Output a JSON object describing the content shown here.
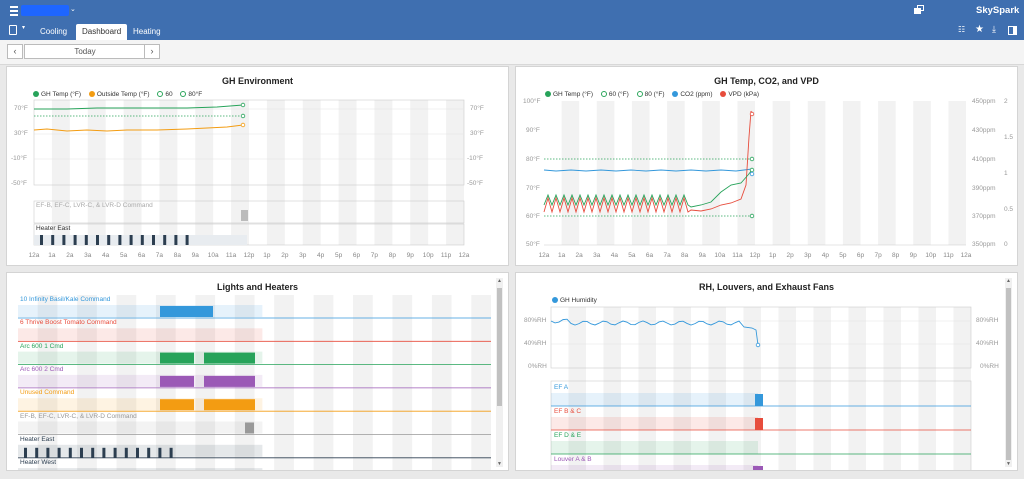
{
  "app": {
    "brand": "SkySpark",
    "project_blurred": "",
    "tabs": [
      {
        "label": "Cooling"
      },
      {
        "label": "Dashboard"
      },
      {
        "label": "Heating"
      }
    ],
    "date_label": "Today",
    "prev_icon": "‹",
    "next_icon": "›"
  },
  "colors": {
    "green": "#27a35a",
    "orange": "#f39c12",
    "blue": "#3498db",
    "red": "#e74c3c",
    "purple": "#9b59b6",
    "navy": "#2c3e50"
  },
  "hours": [
    "12a",
    "1a",
    "2a",
    "3a",
    "4a",
    "5a",
    "6a",
    "7a",
    "8a",
    "9a",
    "10a",
    "11a",
    "12p",
    "1p",
    "2p",
    "3p",
    "4p",
    "5p",
    "6p",
    "7p",
    "8p",
    "9p",
    "10p",
    "11p",
    "12a"
  ],
  "panels": {
    "env": {
      "title": "GH Environment",
      "legend": [
        "GH Temp (°F)",
        "Outside Temp (°F)",
        "60",
        "80°F"
      ],
      "yaxis": [
        "70°F",
        "30°F",
        "-10°F",
        "-50°F"
      ],
      "yaxis_right": [
        "70°F",
        "30°F",
        "-10°F",
        "-50°F"
      ],
      "strips": [
        "EF-B, EF-C, LVR-C, & LVR-D Command",
        "Heater East"
      ]
    },
    "co2": {
      "title": "GH Temp, CO2, and VPD",
      "legend": [
        "GH Temp (°F)",
        "60 (°F)",
        "80 (°F)",
        "CO2 (ppm)",
        "VPD (kPa)"
      ],
      "yaxis": [
        "100°F",
        "90°F",
        "80°F",
        "70°F",
        "60°F",
        "50°F"
      ],
      "yaxis_ppm": [
        "450ppm",
        "430ppm",
        "410ppm",
        "390ppm",
        "370ppm",
        "350ppm"
      ],
      "yaxis_kpa": [
        "2",
        "1.5",
        "1",
        "0.5",
        "0"
      ]
    },
    "lights": {
      "title": "Lights and Heaters",
      "rows": [
        "10 Infinity Basil/Kale Command",
        "6 Thrive Boost Tomato Command",
        "Arc 600 1 Cmd",
        "Arc 600 2 Cmd",
        "Unused Command",
        "EF-B, EF-C, LVR-C, & LVR-D Command",
        "Heater East",
        "Heater West"
      ]
    },
    "rh": {
      "title": "RH, Louvers, and Exhaust Fans",
      "legend": [
        "GH Humidity"
      ],
      "yaxis": [
        "80%RH",
        "40%RH",
        "0%RH"
      ],
      "yaxis_right": [
        "80%RH",
        "40%RH",
        "0%RH"
      ],
      "rows": [
        "EF A",
        "EF B & C",
        "EF D & E",
        "Louver A & B"
      ]
    }
  }
}
